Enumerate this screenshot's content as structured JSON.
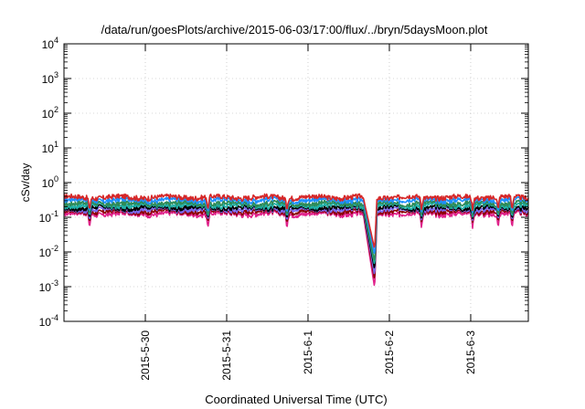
{
  "chart_data": {
    "type": "line",
    "title": "/data/run/goesPlots/archive/2015-06-03/17:00/flux/../bryn/5daysMoon.plot",
    "xlabel": "Coordinated Universal Time (UTC)",
    "ylabel": "cSv/day",
    "yscale": "log",
    "ylim": [
      0.0001,
      10000
    ],
    "xlim": [
      "2015-05-29 00:00",
      "2015-06-03 17:00"
    ],
    "grid": true,
    "x_ticks": [
      "2015-5-30",
      "2015-5-31",
      "2015-6-1",
      "2015-6-2",
      "2015-6-3"
    ],
    "y_ticks": [
      {
        "base": "10",
        "exp": "-4"
      },
      {
        "base": "10",
        "exp": "-3"
      },
      {
        "base": "10",
        "exp": "-2"
      },
      {
        "base": "10",
        "exp": "-1"
      },
      {
        "base": "10",
        "exp": "0"
      },
      {
        "base": "10",
        "exp": "1"
      },
      {
        "base": "10",
        "exp": "2"
      },
      {
        "base": "10",
        "exp": "3"
      },
      {
        "base": "10",
        "exp": "4"
      }
    ],
    "dip": {
      "start": "2015-06-01 16:20",
      "min_at": "2015-06-01 19:40",
      "end": "2015-06-01 20:20"
    },
    "series": [
      {
        "color": "#e0218a",
        "baseline": 0.12,
        "dip_min": 0.0009,
        "spike_floor": 0.045
      },
      {
        "color": "#8b0000",
        "baseline": 0.14,
        "dip_min": 0.0015,
        "spike_floor": 0.07
      },
      {
        "color": "#7b68ee",
        "baseline": 0.16,
        "dip_min": 0.002,
        "spike_floor": 0.08
      },
      {
        "color": "#000000",
        "baseline": 0.18,
        "dip_min": 0.003,
        "spike_floor": 0.09
      },
      {
        "color": "#20b2aa",
        "baseline": 0.21,
        "dip_min": 0.004,
        "spike_floor": 0.1
      },
      {
        "color": "#2e8b57",
        "baseline": 0.24,
        "dip_min": 0.005,
        "spike_floor": 0.11
      },
      {
        "color": "#1e90ff",
        "baseline": 0.3,
        "dip_min": 0.008,
        "spike_floor": 0.13
      },
      {
        "color": "#d62728",
        "baseline": 0.36,
        "dip_min": 0.012,
        "spike_floor": 0.15
      }
    ]
  }
}
